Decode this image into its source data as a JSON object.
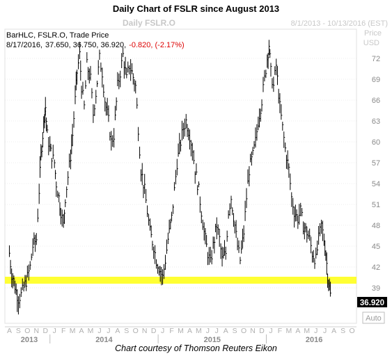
{
  "title": "Daily Chart of FSLR since August 2013",
  "chart_name": "Daily FSLR.O",
  "date_range": "8/1/2013 - 10/13/2016 (EST)",
  "axis_unit": [
    "Price",
    "USD"
  ],
  "legend": {
    "line1": "BarHLC, FSLR.O, Trade Price",
    "date": "8/17/2016,",
    "ohlc": "37.650, 36.750, 36.920,",
    "change": "-0.820, (-2.17%)"
  },
  "last_price_label": "36.920",
  "auto_label": "Auto",
  "credit": "Chart courtesy of Thomson Reuters Eikon",
  "colors": {
    "bars": "#000000",
    "highlight": "#ffff33",
    "change": "#dd0000",
    "axis_text": "#bdbdbd",
    "grid": "#d9d9d9"
  },
  "chart_data": {
    "type": "line",
    "y_ticks": [
      39,
      42,
      45,
      48,
      51,
      54,
      57,
      60,
      63,
      66,
      69,
      72
    ],
    "ylim": [
      34.5,
      75.5
    ],
    "x_month_letters": [
      "A",
      "S",
      "O",
      "N",
      "D",
      "J",
      "F",
      "M",
      "A",
      "M",
      "J",
      "J",
      "A",
      "S",
      "O",
      "N",
      "D",
      "J",
      "F",
      "M",
      "A",
      "M",
      "J",
      "J",
      "A",
      "S",
      "O",
      "N",
      "D",
      "J",
      "F",
      "M",
      "A",
      "M",
      "J",
      "J",
      "A",
      "S",
      "O"
    ],
    "x_years": [
      "2013",
      "2014",
      "2015",
      "2016"
    ],
    "highlight_band": [
      39.6,
      40.6
    ],
    "series": [
      {
        "values": [
          [
            0,
            44
          ],
          [
            0.25,
            41
          ],
          [
            0.5,
            40
          ],
          [
            0.75,
            38.5
          ],
          [
            1,
            37.5
          ],
          [
            1.3,
            38
          ],
          [
            1.6,
            39
          ],
          [
            2,
            40.5
          ],
          [
            2.3,
            42
          ],
          [
            2.6,
            45
          ],
          [
            3,
            46
          ],
          [
            3.3,
            53
          ],
          [
            3.5,
            58
          ],
          [
            3.7,
            61
          ],
          [
            3.9,
            64
          ],
          [
            4,
            65
          ],
          [
            4.2,
            61
          ],
          [
            4.5,
            59
          ],
          [
            4.7,
            58
          ],
          [
            5,
            57
          ],
          [
            5.2,
            54
          ],
          [
            5.5,
            52
          ],
          [
            5.7,
            50
          ],
          [
            6,
            48
          ],
          [
            6.2,
            52
          ],
          [
            6.5,
            55
          ],
          [
            6.8,
            58
          ],
          [
            7,
            61
          ],
          [
            7.3,
            66
          ],
          [
            7.5,
            70
          ],
          [
            7.8,
            72.5
          ],
          [
            8,
            68
          ],
          [
            8.3,
            65
          ],
          [
            8.6,
            71
          ],
          [
            9,
            69
          ],
          [
            9.3,
            64
          ],
          [
            9.6,
            67
          ],
          [
            10,
            72
          ],
          [
            10.3,
            70
          ],
          [
            10.6,
            66
          ],
          [
            11,
            63
          ],
          [
            11.3,
            60
          ],
          [
            11.6,
            61
          ],
          [
            12,
            68
          ],
          [
            12.3,
            70
          ],
          [
            12.6,
            72.5
          ],
          [
            13,
            69
          ],
          [
            13.3,
            71
          ],
          [
            13.6,
            70
          ],
          [
            14,
            68
          ],
          [
            14.3,
            62
          ],
          [
            14.6,
            56
          ],
          [
            15,
            53
          ],
          [
            15.3,
            50
          ],
          [
            15.6,
            47
          ],
          [
            16,
            45
          ],
          [
            16.3,
            43
          ],
          [
            16.6,
            42
          ],
          [
            17,
            40.5
          ],
          [
            17.3,
            43
          ],
          [
            17.6,
            46
          ],
          [
            18,
            49
          ],
          [
            18.3,
            53
          ],
          [
            18.6,
            57
          ],
          [
            19,
            60
          ],
          [
            19.3,
            62
          ],
          [
            19.6,
            63
          ],
          [
            20,
            61
          ],
          [
            20.3,
            59
          ],
          [
            20.6,
            56
          ],
          [
            21,
            53
          ],
          [
            21.3,
            50
          ],
          [
            21.6,
            47
          ],
          [
            22,
            44
          ],
          [
            22.3,
            42.5
          ],
          [
            22.6,
            45
          ],
          [
            23,
            48
          ],
          [
            23.3,
            46
          ],
          [
            23.6,
            43
          ],
          [
            24,
            44
          ],
          [
            24.3,
            50
          ],
          [
            24.6,
            52
          ],
          [
            25,
            48
          ],
          [
            25.3,
            45
          ],
          [
            25.6,
            43
          ],
          [
            26,
            47
          ],
          [
            26.3,
            52
          ],
          [
            26.6,
            56
          ],
          [
            27,
            58
          ],
          [
            27.3,
            60
          ],
          [
            27.6,
            63
          ],
          [
            28,
            66
          ],
          [
            28.3,
            69
          ],
          [
            28.6,
            72
          ],
          [
            28.8,
            74
          ],
          [
            29,
            70
          ],
          [
            29.3,
            68
          ],
          [
            29.6,
            71
          ],
          [
            30,
            65
          ],
          [
            30.3,
            62
          ],
          [
            30.6,
            59
          ],
          [
            31,
            56
          ],
          [
            31.3,
            52
          ],
          [
            31.6,
            50
          ],
          [
            32,
            49
          ],
          [
            32.3,
            50
          ],
          [
            32.6,
            48
          ],
          [
            33,
            47
          ],
          [
            33.3,
            46
          ],
          [
            33.6,
            44
          ],
          [
            34,
            43
          ],
          [
            34.3,
            46
          ],
          [
            34.6,
            48
          ],
          [
            34.9,
            46
          ],
          [
            35.1,
            44
          ],
          [
            35.3,
            41
          ],
          [
            35.5,
            39
          ],
          [
            35.7,
            37
          ]
        ]
      }
    ],
    "shown_price_range": [
      36.5,
      74.5
    ]
  }
}
